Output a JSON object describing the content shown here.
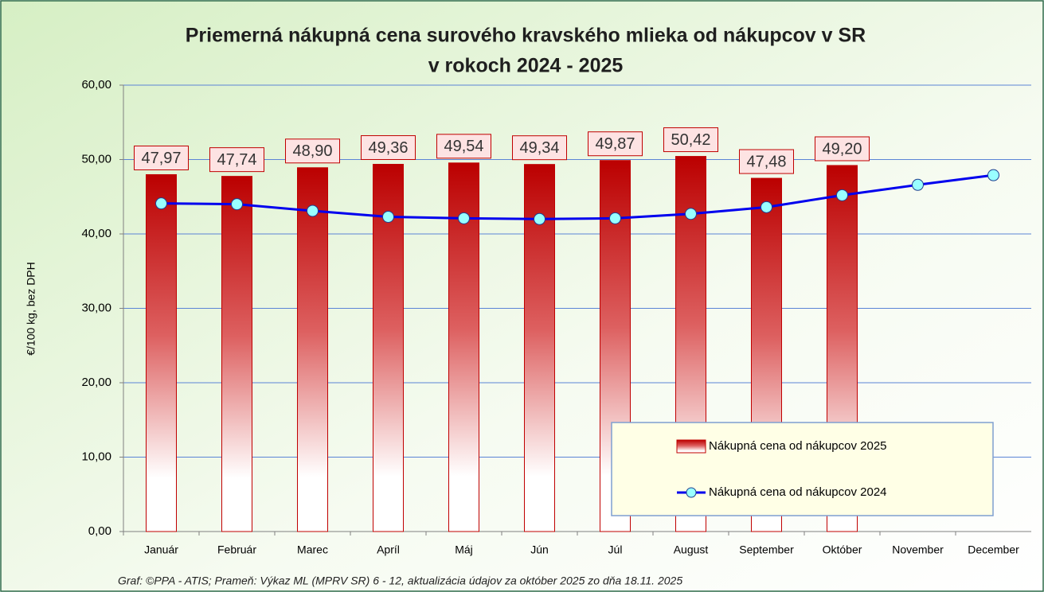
{
  "chart_data": {
    "type": "bar_line",
    "title": "Priemerná nákupná cena surového kravského mlieka od nákupcov v SR",
    "subtitle": "v rokoch 2024 - 2025",
    "y_label": "€/100 kg, bez DPH",
    "source": "Graf: ©PPA - ATIS; Prameň: Výkaz ML (MPRV SR) 6 - 12, aktualizácia údajov za október 2025 zo dňa 18.11. 2025",
    "categories": [
      "Január",
      "Február",
      "Marec",
      "Apríl",
      "Máj",
      "Jún",
      "Júl",
      "August",
      "September",
      "Október",
      "November",
      "December"
    ],
    "series": [
      {
        "name": "Nákupná cena od nákupcov 2025",
        "type": "bar",
        "color": "#c00000",
        "values": [
          47.97,
          47.74,
          48.9,
          49.36,
          49.54,
          49.34,
          49.87,
          50.42,
          47.48,
          49.2,
          null,
          null
        ],
        "value_labels": [
          "47,97",
          "47,74",
          "48,90",
          "49,36",
          "49,54",
          "49,34",
          "49,87",
          "50,42",
          "47,48",
          "49,20",
          null,
          null
        ]
      },
      {
        "name": "Nákupná cena od nákupcov 2024",
        "type": "line",
        "color": "#0000ee",
        "values": [
          44.1,
          44.0,
          43.1,
          42.3,
          42.1,
          42.0,
          42.1,
          42.7,
          43.6,
          45.2,
          46.6,
          47.9
        ]
      }
    ],
    "ylim": [
      0,
      60
    ],
    "yticks": [
      {
        "value": 0,
        "label": "0,00"
      },
      {
        "value": 10,
        "label": "10,00"
      },
      {
        "value": 20,
        "label": "20,00"
      },
      {
        "value": 30,
        "label": "30,00"
      },
      {
        "value": 40,
        "label": "40,00"
      },
      {
        "value": 50,
        "label": "50,00"
      },
      {
        "value": 60,
        "label": "60,00"
      }
    ],
    "grid": true,
    "legend": "lower right"
  }
}
